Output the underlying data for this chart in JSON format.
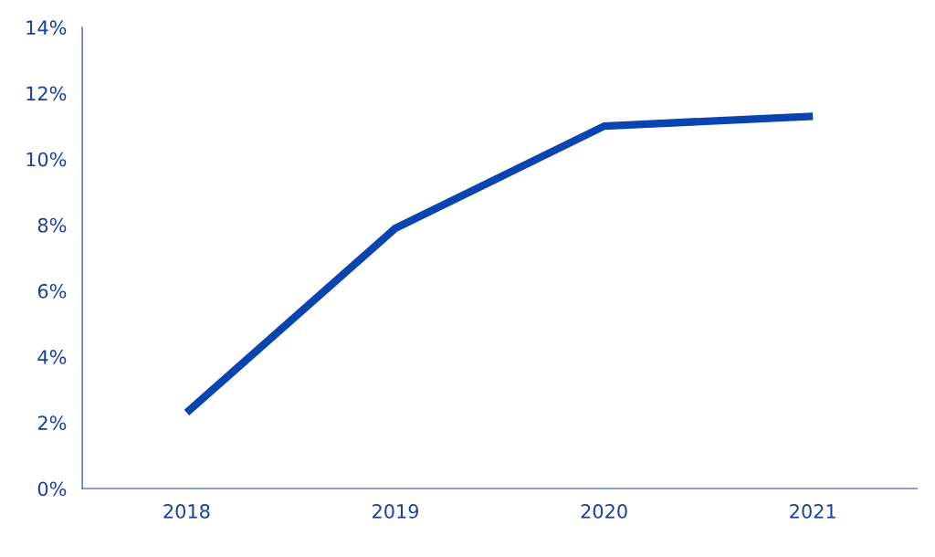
{
  "chart_data": {
    "type": "line",
    "categories": [
      "2018",
      "2019",
      "2020",
      "2021"
    ],
    "series": [
      {
        "color": "#0a44b0",
        "values": [
          2.3,
          7.9,
          11.0,
          11.3
        ]
      }
    ],
    "ylim": [
      0,
      14
    ],
    "yticks": [
      {
        "value": 0,
        "label": "0%"
      },
      {
        "value": 2,
        "label": "2%"
      },
      {
        "value": 4,
        "label": "4%"
      },
      {
        "value": 6,
        "label": "6%"
      },
      {
        "value": 8,
        "label": "8%"
      },
      {
        "value": 10,
        "label": "10%"
      },
      {
        "value": 12,
        "label": "12%"
      },
      {
        "value": 14,
        "label": "14%"
      }
    ],
    "grid": false,
    "legend": false,
    "marker": "none",
    "line_style": "solid"
  }
}
